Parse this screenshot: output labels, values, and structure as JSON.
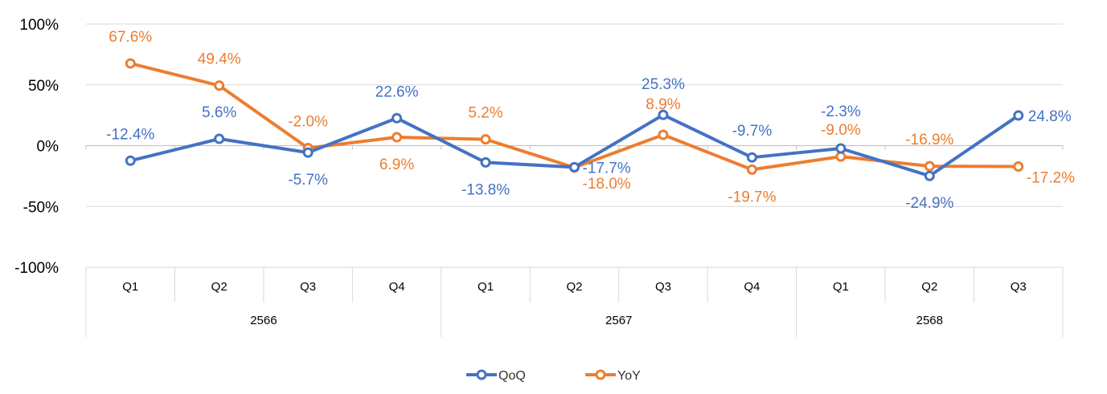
{
  "chart_data": {
    "type": "line",
    "title": "",
    "xlabel": "",
    "ylabel": "",
    "ylim": [
      -100,
      100
    ],
    "yticks": [
      -100,
      -50,
      0,
      50,
      100
    ],
    "ytick_labels": [
      "-100%",
      "-50%",
      "0%",
      "50%",
      "100%"
    ],
    "categories": [
      "Q1",
      "Q2",
      "Q3",
      "Q4",
      "Q1",
      "Q2",
      "Q3",
      "Q4",
      "Q1",
      "Q2",
      "Q3"
    ],
    "groups": [
      {
        "label": "2566",
        "count": 4
      },
      {
        "label": "2567",
        "count": 4
      },
      {
        "label": "2568",
        "count": 3
      }
    ],
    "series": [
      {
        "name": "QoQ",
        "color": "#4472C4",
        "values": [
          -12.4,
          5.6,
          -5.7,
          22.6,
          -13.8,
          -17.7,
          25.3,
          -9.7,
          -2.3,
          -24.9,
          24.8
        ],
        "labels": [
          "-12.4%",
          "5.6%",
          "-5.7%",
          "22.6%",
          "-13.8%",
          "-17.7%",
          "25.3%",
          "-9.7%",
          "-2.3%",
          "-24.9%",
          "24.8%"
        ]
      },
      {
        "name": "YoY",
        "color": "#ED7D31",
        "values": [
          67.6,
          49.4,
          -2.0,
          6.9,
          5.2,
          -18.0,
          8.9,
          -19.7,
          -9.0,
          -16.9,
          -17.2
        ],
        "labels": [
          "67.6%",
          "49.4%",
          "-2.0%",
          "6.9%",
          "5.2%",
          "-18.0%",
          "8.9%",
          "-19.7%",
          "-9.0%",
          "-16.9%",
          "-17.2%"
        ]
      }
    ],
    "legend": {
      "position": "bottom",
      "entries": [
        "QoQ",
        "YoY"
      ]
    },
    "grid": true
  }
}
